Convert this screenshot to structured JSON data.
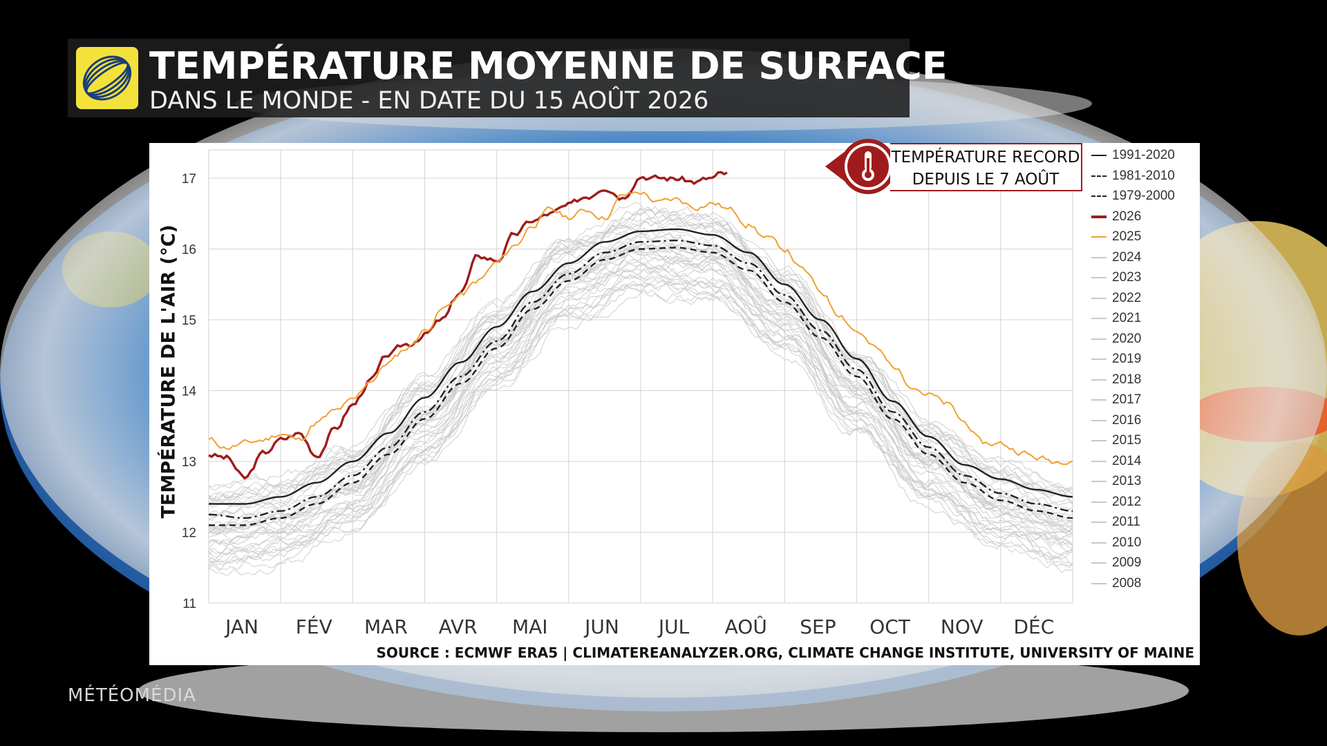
{
  "header": {
    "title": "TEMPÉRATURE MOYENNE DE SURFACE",
    "subtitle": "DANS LE MONDE - EN DATE DU 15 AOÛT 2026"
  },
  "callout": {
    "line1": "TEMPÉRATURE RECORD",
    "line2": "DEPUIS LE 7 AOÛT",
    "icon": "thermometer-icon"
  },
  "source": "SOURCE : ECMWF ERA5 | CLIMATEREANALYZER.ORG, CLIMATE CHANGE INSTITUTE, UNIVERSITY OF MAINE",
  "brand": "MÉTÉOMÉDIA",
  "colors": {
    "record": "#a01c1c",
    "year_2025": "#f0a030",
    "history": "#c8c8c8",
    "climatology": "#222222"
  },
  "chart_data": {
    "type": "line",
    "ylabel": "TEMPÉRATURE DE L'AIR (°C)",
    "xlabel": "",
    "ylim": [
      11,
      17.4
    ],
    "yticks": [
      "11",
      "12",
      "13",
      "14",
      "15",
      "16",
      "17"
    ],
    "months": [
      "JAN",
      "FÉV",
      "MAR",
      "AVR",
      "MAI",
      "JUN",
      "JUL",
      "AOÛ",
      "SEP",
      "OCT",
      "NOV",
      "DÉC"
    ],
    "grid": true,
    "legend_position": "right",
    "series": [
      {
        "name": "1991-2020",
        "style": "solid",
        "color": "#222222",
        "month": [
          0,
          0.5,
          1,
          1.5,
          2,
          2.5,
          3,
          3.5,
          4,
          4.5,
          5,
          5.5,
          6,
          6.5,
          7,
          7.5,
          8,
          8.5,
          9,
          9.5,
          10,
          10.5,
          11,
          11.5,
          12
        ],
        "values": [
          12.4,
          12.4,
          12.5,
          12.7,
          13.0,
          13.4,
          13.9,
          14.4,
          14.9,
          15.4,
          15.8,
          16.1,
          16.25,
          16.28,
          16.2,
          15.95,
          15.5,
          15.0,
          14.45,
          13.85,
          13.35,
          12.95,
          12.75,
          12.6,
          12.5
        ]
      },
      {
        "name": "1981-2010",
        "style": "dashdot",
        "color": "#222222",
        "month": [
          0,
          0.5,
          1,
          1.5,
          2,
          2.5,
          3,
          3.5,
          4,
          4.5,
          5,
          5.5,
          6,
          6.5,
          7,
          7.5,
          8,
          8.5,
          9,
          9.5,
          10,
          10.5,
          11,
          11.5,
          12
        ],
        "values": [
          12.25,
          12.2,
          12.3,
          12.5,
          12.8,
          13.2,
          13.7,
          14.2,
          14.7,
          15.25,
          15.65,
          15.95,
          16.1,
          16.12,
          16.05,
          15.8,
          15.35,
          14.85,
          14.3,
          13.7,
          13.2,
          12.8,
          12.55,
          12.4,
          12.3
        ]
      },
      {
        "name": "1979-2000",
        "style": "dashed",
        "color": "#222222",
        "month": [
          0,
          0.5,
          1,
          1.5,
          2,
          2.5,
          3,
          3.5,
          4,
          4.5,
          5,
          5.5,
          6,
          6.5,
          7,
          7.5,
          8,
          8.5,
          9,
          9.5,
          10,
          10.5,
          11,
          11.5,
          12
        ],
        "values": [
          12.1,
          12.1,
          12.2,
          12.4,
          12.7,
          13.1,
          13.6,
          14.1,
          14.6,
          15.15,
          15.55,
          15.85,
          16.0,
          16.02,
          15.95,
          15.7,
          15.25,
          14.75,
          14.2,
          13.6,
          13.1,
          12.7,
          12.45,
          12.3,
          12.2
        ]
      },
      {
        "name": "2026",
        "style": "solid",
        "color": "#a01c1c",
        "month": [
          0,
          0.25,
          0.5,
          0.75,
          1,
          1.25,
          1.5,
          1.75,
          2,
          2.25,
          2.5,
          2.75,
          3,
          3.25,
          3.5,
          3.75,
          4,
          4.25,
          4.5,
          4.75,
          5,
          5.25,
          5.5,
          5.75,
          6,
          6.25,
          6.5,
          6.75,
          7,
          7.1,
          7.2
        ],
        "values": [
          13.1,
          13.05,
          12.75,
          13.1,
          13.3,
          13.4,
          13.1,
          13.45,
          13.8,
          14.15,
          14.5,
          14.65,
          14.8,
          15.0,
          15.4,
          15.9,
          15.85,
          16.2,
          16.4,
          16.5,
          16.6,
          16.75,
          16.9,
          16.75,
          17.05,
          17.0,
          17.0,
          16.95,
          17.0,
          17.05,
          17.05
        ]
      },
      {
        "name": "2025",
        "style": "solid",
        "color": "#f0a030",
        "month": [
          0,
          0.25,
          0.5,
          0.75,
          1,
          1.25,
          1.5,
          1.75,
          2,
          2.25,
          2.5,
          2.75,
          3,
          3.25,
          3.5,
          3.75,
          4,
          4.25,
          4.5,
          4.75,
          5,
          5.25,
          5.5,
          5.75,
          6,
          6.25,
          6.5,
          6.75,
          7,
          7.25,
          7.5,
          7.75,
          8,
          8.25,
          8.5,
          8.75,
          9,
          9.25,
          9.5,
          9.75,
          10,
          10.25,
          10.5,
          10.75,
          11,
          11.25,
          11.5,
          11.75,
          12
        ],
        "values": [
          13.3,
          13.2,
          13.25,
          13.3,
          13.4,
          13.3,
          13.55,
          13.7,
          13.85,
          14.15,
          14.4,
          14.6,
          14.85,
          15.15,
          15.35,
          15.55,
          15.8,
          16.05,
          16.35,
          16.55,
          16.45,
          16.55,
          16.45,
          16.75,
          16.8,
          16.65,
          16.7,
          16.6,
          16.65,
          16.55,
          16.35,
          16.15,
          16.0,
          15.7,
          15.4,
          15.1,
          14.85,
          14.6,
          14.35,
          14.1,
          13.95,
          13.8,
          13.55,
          13.25,
          13.25,
          13.15,
          13.05,
          13.0,
          13.05
        ]
      }
    ],
    "historical_years": [
      "2024",
      "2023",
      "2022",
      "2021",
      "2020",
      "2019",
      "2018",
      "2017",
      "2016",
      "2015",
      "2014",
      "2013",
      "2012",
      "2011",
      "2010",
      "2009",
      "2008"
    ],
    "historical_base": {
      "month": [
        0,
        1,
        2,
        3,
        4,
        5,
        6,
        7,
        8,
        9,
        10,
        11,
        12
      ],
      "values": [
        12.05,
        12.2,
        12.65,
        13.6,
        14.65,
        15.6,
        16.0,
        15.9,
        15.15,
        14.0,
        13.0,
        12.4,
        12.1
      ],
      "spread": 0.45
    }
  }
}
